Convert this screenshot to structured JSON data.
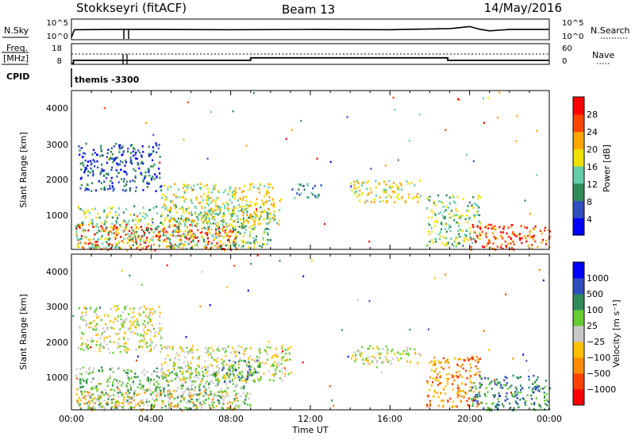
{
  "header": {
    "station": "Stokkseyri (fitACF)",
    "beam": "Beam 13",
    "date": "14/May/2016"
  },
  "strips": {
    "nsky_label": "N.Sky",
    "nsky_ticks": [
      "10^5",
      "10^0"
    ],
    "nsearch_label": "N.Search",
    "nsearch_ticks": [
      "10^5",
      "10^0"
    ],
    "freq_label_1": "Freq.",
    "freq_label_2": "[MHz]",
    "freq_ticks": [
      "18",
      "8"
    ],
    "nave_label": "Nave",
    "nave_ticks": [
      "60",
      "0"
    ],
    "cpid_label": "CPID",
    "cpid_value": "themis -3300"
  },
  "panels": {
    "ylabel": "Slant Range [km]",
    "y_ticks": [
      "4000",
      "3000",
      "2000",
      "1000"
    ],
    "x_ticks": [
      "00:00",
      "04:00",
      "08:00",
      "12:00",
      "16:00",
      "20:00",
      "00:00"
    ],
    "xlabel": "Time UT"
  },
  "power_scale": {
    "label": "Power [dB]",
    "ticks": [
      "28",
      "24",
      "20",
      "16",
      "12",
      "8",
      "4"
    ],
    "colors": [
      "#0000ff",
      "#2f4fbf",
      "#2e8b57",
      "#66cdaa",
      "#f0e000",
      "#ffa500",
      "#ff4500",
      "#ff0000"
    ]
  },
  "velocity_scale": {
    "label": "Velocity [m s⁻¹]",
    "ticks": [
      "1000",
      "500",
      "100",
      "25",
      "−25",
      "−100",
      "−500",
      "−1000"
    ],
    "colors": [
      "#ff0000",
      "#ff4000",
      "#ff8c00",
      "#ffc000",
      "#c8c8c8",
      "#66cc33",
      "#2e8b57",
      "#2f4fbf",
      "#0000ff"
    ]
  },
  "chart_data": [
    {
      "type": "line",
      "name": "strip-nsky",
      "x_hours": [
        0,
        0.15,
        2.5,
        2.7,
        4,
        8,
        12,
        16,
        19,
        20,
        20.5,
        21,
        22,
        24
      ],
      "y_log": [
        0.6,
        3.4,
        3.5,
        3.5,
        3.5,
        3.4,
        3.5,
        3.4,
        3.8,
        4.6,
        3.6,
        3.0,
        3.5,
        3.5
      ]
    },
    {
      "type": "line",
      "name": "strip-freq",
      "x_hours": [
        0,
        0.1,
        0.1,
        9.0,
        9.0,
        18.9,
        18.9,
        24
      ],
      "y_mhz": [
        8,
        8,
        10.5,
        10.5,
        12.5,
        12.5,
        10.5,
        10.5
      ]
    },
    {
      "type": "heatmap",
      "name": "power",
      "x_range_hours": [
        0,
        24
      ],
      "y_range_km": [
        200,
        4500
      ],
      "clusters": [
        {
          "t0": 0.2,
          "t1": 8.3,
          "r0": 200,
          "r1": 900,
          "c": 6
        },
        {
          "t0": 0.2,
          "t1": 10.0,
          "r0": 250,
          "r1": 1400,
          "c": 3
        },
        {
          "t0": 0.3,
          "t1": 4.5,
          "r0": 1800,
          "r1": 3100,
          "c": 1
        },
        {
          "t0": 4.5,
          "t1": 10.5,
          "r0": 900,
          "r1": 2000,
          "c": 4
        },
        {
          "t0": 11.0,
          "t1": 12.5,
          "r0": 1600,
          "r1": 2000,
          "c": 2
        },
        {
          "t0": 14.0,
          "t1": 17.5,
          "r0": 1500,
          "r1": 2100,
          "c": 4
        },
        {
          "t0": 17.8,
          "t1": 20.5,
          "r0": 300,
          "r1": 1700,
          "c": 3
        },
        {
          "t0": 20.0,
          "t1": 24.0,
          "r0": 200,
          "r1": 900,
          "c": 6
        }
      ]
    },
    {
      "type": "heatmap",
      "name": "velocity",
      "x_range_hours": [
        0,
        24
      ],
      "y_range_km": [
        200,
        4500
      ],
      "clusters": [
        {
          "t0": 0.2,
          "t1": 8.3,
          "r0": 200,
          "r1": 800,
          "c": 3
        },
        {
          "t0": 0.2,
          "t1": 9.0,
          "r0": 250,
          "r1": 1400,
          "c": 5
        },
        {
          "t0": 0.3,
          "t1": 4.5,
          "r0": 1800,
          "r1": 3100,
          "c": 4
        },
        {
          "t0": 4.5,
          "t1": 11.0,
          "r0": 1000,
          "r1": 2000,
          "c": 4
        },
        {
          "t0": 7.5,
          "t1": 9.5,
          "r0": 1000,
          "r1": 1600,
          "c": 6
        },
        {
          "t0": 14.0,
          "t1": 17.5,
          "r0": 1500,
          "r1": 2000,
          "c": 4
        },
        {
          "t0": 17.8,
          "t1": 20.5,
          "r0": 300,
          "r1": 1700,
          "c": 2
        },
        {
          "t0": 20.0,
          "t1": 24.0,
          "r0": 200,
          "r1": 1200,
          "c": 6
        }
      ]
    }
  ]
}
